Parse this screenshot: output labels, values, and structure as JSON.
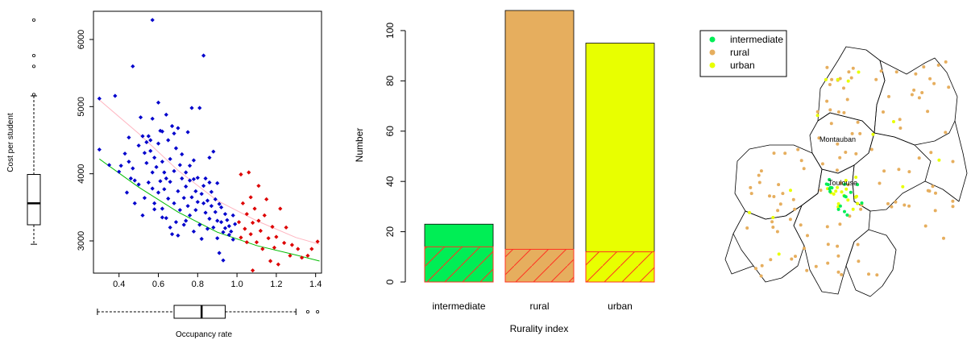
{
  "chart_data": [
    {
      "type": "scatter",
      "xlabel": "Occupancy rate",
      "ylabel": "Cost per student",
      "xticks": [
        "0.4",
        "0.6",
        "0.8",
        "1.0",
        "1.2",
        "1.4"
      ],
      "xtick_values": [
        0.4,
        0.6,
        0.8,
        1.0,
        1.2,
        1.4
      ],
      "yticks": [
        "3000",
        "4000",
        "5000",
        "6000"
      ],
      "ytick_values": [
        3000,
        4000,
        5000,
        6000
      ],
      "xlim": [
        0.27,
        1.43
      ],
      "ylim": [
        2520,
        6420
      ],
      "series": [
        {
          "color": "#0000cc",
          "points": [
            [
              0.3,
              5120
            ],
            [
              0.3,
              4360
            ],
            [
              0.35,
              4130
            ],
            [
              0.38,
              5160
            ],
            [
              0.4,
              4030
            ],
            [
              0.41,
              4120
            ],
            [
              0.43,
              4300
            ],
            [
              0.45,
              4540
            ],
            [
              0.45,
              4180
            ],
            [
              0.46,
              3930
            ],
            [
              0.47,
              4080
            ],
            [
              0.47,
              5600
            ],
            [
              0.48,
              3900
            ],
            [
              0.5,
              3840
            ],
            [
              0.5,
              4420
            ],
            [
              0.51,
              4840
            ],
            [
              0.52,
              4560
            ],
            [
              0.53,
              4310
            ],
            [
              0.53,
              3640
            ],
            [
              0.54,
              4160
            ],
            [
              0.55,
              3870
            ],
            [
              0.55,
              4560
            ],
            [
              0.56,
              4500
            ],
            [
              0.56,
              4340
            ],
            [
              0.57,
              6290
            ],
            [
              0.57,
              4820
            ],
            [
              0.57,
              4020
            ],
            [
              0.58,
              4240
            ],
            [
              0.58,
              3560
            ],
            [
              0.59,
              4100
            ],
            [
              0.6,
              5060
            ],
            [
              0.6,
              3720
            ],
            [
              0.6,
              4450
            ],
            [
              0.61,
              3890
            ],
            [
              0.61,
              4640
            ],
            [
              0.62,
              3480
            ],
            [
              0.62,
              4180
            ],
            [
              0.63,
              3770
            ],
            [
              0.63,
              4020
            ],
            [
              0.64,
              4880
            ],
            [
              0.64,
              3340
            ],
            [
              0.65,
              4500
            ],
            [
              0.65,
              3630
            ],
            [
              0.66,
              3880
            ],
            [
              0.66,
              4220
            ],
            [
              0.67,
              3100
            ],
            [
              0.67,
              4710
            ],
            [
              0.68,
              3560
            ],
            [
              0.68,
              4040
            ],
            [
              0.69,
              3280
            ],
            [
              0.69,
              4380
            ],
            [
              0.7,
              4680
            ],
            [
              0.7,
              3740
            ],
            [
              0.71,
              4130
            ],
            [
              0.71,
              3460
            ],
            [
              0.72,
              3930
            ],
            [
              0.72,
              4290
            ],
            [
              0.73,
              3640
            ],
            [
              0.73,
              3240
            ],
            [
              0.74,
              3810
            ],
            [
              0.74,
              4020
            ],
            [
              0.75,
              3520
            ],
            [
              0.75,
              4620
            ],
            [
              0.76,
              3380
            ],
            [
              0.76,
              3900
            ],
            [
              0.77,
              4980
            ],
            [
              0.77,
              3650
            ],
            [
              0.78,
              3140
            ],
            [
              0.78,
              4200
            ],
            [
              0.79,
              3740
            ],
            [
              0.79,
              3460
            ],
            [
              0.8,
              3940
            ],
            [
              0.8,
              3580
            ],
            [
              0.81,
              3240
            ],
            [
              0.81,
              4980
            ],
            [
              0.82,
              3700
            ],
            [
              0.82,
              3030
            ],
            [
              0.83,
              5760
            ],
            [
              0.83,
              3820
            ],
            [
              0.84,
              3420
            ],
            [
              0.84,
              3930
            ],
            [
              0.85,
              3600
            ],
            [
              0.85,
              3180
            ],
            [
              0.86,
              3870
            ],
            [
              0.86,
              3330
            ],
            [
              0.87,
              3520
            ],
            [
              0.87,
              3730
            ],
            [
              0.88,
              3200
            ],
            [
              0.88,
              4330
            ],
            [
              0.89,
              3430
            ],
            [
              0.89,
              3620
            ],
            [
              0.9,
              3040
            ],
            [
              0.9,
              3300
            ],
            [
              0.91,
              3550
            ],
            [
              0.91,
              2820
            ],
            [
              0.92,
              3280
            ],
            [
              0.92,
              3500
            ],
            [
              0.93,
              3130
            ],
            [
              0.93,
              2710
            ],
            [
              0.94,
              3400
            ],
            [
              0.94,
              3190
            ],
            [
              0.95,
              3310
            ],
            [
              0.96,
              3090
            ],
            [
              0.96,
              3220
            ],
            [
              0.97,
              3140
            ],
            [
              0.98,
              3380
            ],
            [
              0.98,
              3020
            ],
            [
              0.99,
              3250
            ],
            [
              0.58,
              3470
            ],
            [
              0.62,
              3350
            ],
            [
              0.66,
              3200
            ],
            [
              0.7,
              3080
            ],
            [
              0.74,
              3300
            ],
            [
              0.78,
              3920
            ],
            [
              0.52,
              3380
            ],
            [
              0.48,
              3560
            ],
            [
              0.44,
              3720
            ],
            [
              0.76,
              4120
            ],
            [
              0.68,
              4600
            ],
            [
              0.62,
              4630
            ],
            [
              0.86,
              4240
            ],
            [
              0.9,
              3860
            ],
            [
              0.83,
              3560
            ],
            [
              0.57,
              3780
            ],
            [
              0.54,
              4470
            ],
            [
              0.64,
              3930
            ]
          ]
        },
        {
          "color": "#dd0000",
          "points": [
            [
              1.01,
              3280
            ],
            [
              1.02,
              3990
            ],
            [
              1.02,
              3050
            ],
            [
              1.03,
              3560
            ],
            [
              1.04,
              3180
            ],
            [
              1.05,
              3400
            ],
            [
              1.05,
              2980
            ],
            [
              1.06,
              4020
            ],
            [
              1.07,
              3650
            ],
            [
              1.07,
              3100
            ],
            [
              1.08,
              2560
            ],
            [
              1.08,
              3270
            ],
            [
              1.09,
              3480
            ],
            [
              1.1,
              2980
            ],
            [
              1.11,
              3300
            ],
            [
              1.11,
              3820
            ],
            [
              1.12,
              3150
            ],
            [
              1.13,
              2880
            ],
            [
              1.14,
              3380
            ],
            [
              1.15,
              3620
            ],
            [
              1.16,
              3040
            ],
            [
              1.17,
              2700
            ],
            [
              1.18,
              3210
            ],
            [
              1.19,
              2900
            ],
            [
              1.2,
              3060
            ],
            [
              1.21,
              2650
            ],
            [
              1.22,
              3480
            ],
            [
              1.24,
              2970
            ],
            [
              1.25,
              3200
            ],
            [
              1.27,
              2780
            ],
            [
              1.28,
              2940
            ],
            [
              1.31,
              2880
            ],
            [
              1.33,
              2750
            ],
            [
              1.36,
              2780
            ],
            [
              1.38,
              2880
            ],
            [
              1.41,
              2990
            ]
          ]
        }
      ],
      "fit_lines": [
        {
          "color": "#00bb00",
          "points": [
            [
              0.3,
              4220
            ],
            [
              0.5,
              3800
            ],
            [
              0.7,
              3430
            ],
            [
              0.9,
              3130
            ],
            [
              1.1,
              2930
            ],
            [
              1.3,
              2790
            ],
            [
              1.42,
              2700
            ]
          ]
        },
        {
          "color": "#ffb6c1",
          "points": [
            [
              0.3,
              5100
            ],
            [
              0.5,
              4600
            ],
            [
              0.7,
              4050
            ],
            [
              0.9,
              3600
            ],
            [
              1.1,
              3300
            ],
            [
              1.3,
              3050
            ],
            [
              1.42,
              2950
            ]
          ]
        }
      ],
      "y_boxplot": {
        "min": 2950,
        "q1": 3240,
        "median": 3560,
        "q3": 3990,
        "max": 5160,
        "outliers": [
          5180,
          5600,
          5760,
          6290
        ]
      },
      "x_boxplot": {
        "min": 0.29,
        "q1": 0.68,
        "median": 0.82,
        "q3": 0.94,
        "max": 1.3,
        "outliers": [
          1.36,
          1.41
        ]
      }
    },
    {
      "type": "bar",
      "xlabel": "Rurality index",
      "ylabel": "Number",
      "ylim": [
        0,
        108
      ],
      "yticks": [
        "0",
        "20",
        "40",
        "60",
        "80",
        "100"
      ],
      "ytick_values": [
        0,
        20,
        40,
        60,
        80,
        100
      ],
      "categories": [
        "intermediate",
        "rural",
        "urban"
      ],
      "values": [
        23,
        108,
        95
      ],
      "hatched_values": [
        14,
        13,
        12
      ],
      "colors": [
        "#00ee55",
        "#e6ae5e",
        "#e8ff00"
      ],
      "hatch_color": "#ff3322"
    }
  ],
  "map": {
    "legend": [
      {
        "label": "intermediate",
        "color": "#00ee55"
      },
      {
        "label": "rural",
        "color": "#e6ae5e"
      },
      {
        "label": "urban",
        "color": "#e8ff00"
      }
    ],
    "city_labels": [
      "Montauban",
      "Toulouse"
    ],
    "points": [
      {
        "cat": "rural",
        "n": 120
      },
      {
        "cat": "urban",
        "n": 30
      },
      {
        "cat": "intermediate",
        "n": 18
      }
    ]
  }
}
